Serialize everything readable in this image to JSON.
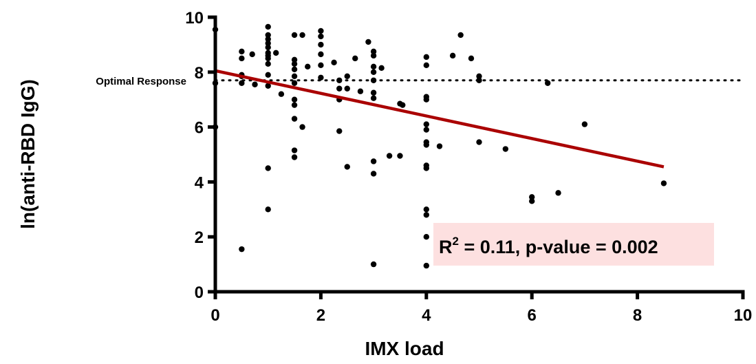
{
  "chart_data": {
    "type": "scatter",
    "title": "",
    "xlabel": "IMX load",
    "ylabel": "ln(anti-RBD IgG)",
    "xlim": [
      0,
      10
    ],
    "ylim": [
      0,
      10
    ],
    "xticks": [
      "0",
      "2",
      "4",
      "6",
      "8",
      "10"
    ],
    "yticks": [
      "0",
      "2",
      "4",
      "6",
      "8",
      "10"
    ],
    "grid": false,
    "colors": {
      "points": "#000000",
      "regression": "#aa0000",
      "annotation_bg": "#fde0e0"
    },
    "reference_line": {
      "label": "Optimal Response",
      "y": 7.7,
      "style": "dotted"
    },
    "regression_line": {
      "x": [
        0,
        8.5
      ],
      "y": [
        8.05,
        4.55
      ]
    },
    "annotation": {
      "r_label": "R",
      "r_power": "2",
      "text": " = 0.11, p-value = 0.002"
    },
    "points": [
      [
        0,
        9.55
      ],
      [
        0,
        7.6
      ],
      [
        0,
        6.0
      ],
      [
        0.5,
        8.75
      ],
      [
        0.5,
        8.5
      ],
      [
        0.5,
        7.9
      ],
      [
        0.5,
        7.85
      ],
      [
        0.5,
        7.6
      ],
      [
        0.5,
        1.55
      ],
      [
        0.7,
        8.65
      ],
      [
        0.75,
        7.55
      ],
      [
        1,
        9.65
      ],
      [
        1,
        9.35
      ],
      [
        1,
        9.2
      ],
      [
        1,
        9.05
      ],
      [
        1,
        8.9
      ],
      [
        1,
        8.7
      ],
      [
        1,
        8.6
      ],
      [
        1,
        8.5
      ],
      [
        1,
        8.3
      ],
      [
        1,
        7.9
      ],
      [
        1,
        7.5
      ],
      [
        1,
        4.5
      ],
      [
        1,
        3.0
      ],
      [
        1.15,
        8.7
      ],
      [
        1.25,
        7.2
      ],
      [
        1.5,
        9.35
      ],
      [
        1.5,
        8.45
      ],
      [
        1.5,
        8.3
      ],
      [
        1.5,
        8.1
      ],
      [
        1.5,
        7.85
      ],
      [
        1.5,
        7.6
      ],
      [
        1.5,
        7.0
      ],
      [
        1.5,
        6.8
      ],
      [
        1.5,
        6.3
      ],
      [
        1.5,
        5.15
      ],
      [
        1.5,
        4.9
      ],
      [
        1.65,
        9.35
      ],
      [
        1.65,
        6.0
      ],
      [
        1.75,
        8.2
      ],
      [
        2,
        9.5
      ],
      [
        2,
        9.3
      ],
      [
        2,
        9.0
      ],
      [
        2,
        8.65
      ],
      [
        2,
        8.25
      ],
      [
        2,
        7.8
      ],
      [
        2.25,
        8.35
      ],
      [
        2.35,
        7.7
      ],
      [
        2.35,
        7.4
      ],
      [
        2.35,
        7.0
      ],
      [
        2.35,
        5.85
      ],
      [
        2.5,
        7.85
      ],
      [
        2.5,
        7.4
      ],
      [
        2.5,
        4.55
      ],
      [
        2.65,
        8.5
      ],
      [
        2.75,
        7.3
      ],
      [
        2.9,
        9.1
      ],
      [
        3,
        8.75
      ],
      [
        3,
        8.6
      ],
      [
        3,
        8.2
      ],
      [
        3,
        8.0
      ],
      [
        3,
        7.7
      ],
      [
        3,
        7.25
      ],
      [
        3,
        7.05
      ],
      [
        3,
        4.75
      ],
      [
        3,
        4.3
      ],
      [
        3,
        1.0
      ],
      [
        3.15,
        8.15
      ],
      [
        3.3,
        4.95
      ],
      [
        3.5,
        6.85
      ],
      [
        3.5,
        4.95
      ],
      [
        3.55,
        6.8
      ],
      [
        4,
        8.55
      ],
      [
        4,
        8.25
      ],
      [
        4,
        7.1
      ],
      [
        4,
        7.0
      ],
      [
        4,
        6.1
      ],
      [
        4,
        5.9
      ],
      [
        4,
        5.45
      ],
      [
        4,
        5.35
      ],
      [
        4,
        4.6
      ],
      [
        4,
        4.5
      ],
      [
        4,
        3.0
      ],
      [
        4,
        2.8
      ],
      [
        4,
        2.0
      ],
      [
        4,
        0.95
      ],
      [
        4.25,
        5.3
      ],
      [
        4.5,
        8.6
      ],
      [
        4.65,
        9.35
      ],
      [
        4.85,
        8.5
      ],
      [
        5,
        7.85
      ],
      [
        5,
        7.7
      ],
      [
        5,
        5.45
      ],
      [
        5.5,
        5.2
      ],
      [
        6,
        3.45
      ],
      [
        6,
        3.3
      ],
      [
        6.3,
        7.6
      ],
      [
        6.5,
        3.6
      ],
      [
        7,
        6.1
      ],
      [
        8.5,
        3.95
      ]
    ]
  }
}
